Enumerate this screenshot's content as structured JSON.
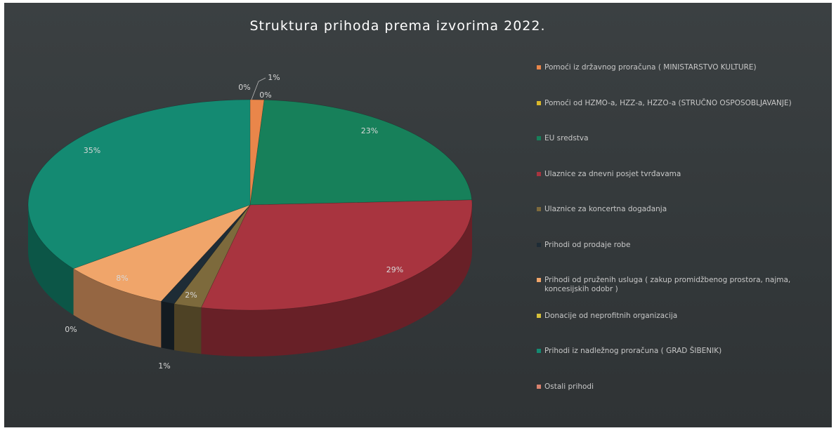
{
  "chart_data": {
    "type": "pie",
    "title": "Struktura prihoda prema izvorima 2022.",
    "categories": [
      "Pomoći iz državnog proračuna ( MINISTARSTVO KULTURE)",
      "Pomoći od HZMO-a, HZZ-a, HZZO-a (STRUČNO OSPOSOBLJAVANJE)",
      "EU sredstva",
      "Ulaznice za dnevni posjet tvrđavama",
      "Ulaznice za koncertna događanja",
      "Prihodi od prodaje robe",
      "Prihodi od pruženih usluga ( zakup promidžbenog prostora, najma, koncesijskih odobr )",
      "Donacije od neprofitnih organizacija",
      "Prihodi iz nadležnog proračuna ( GRAD ŠIBENIK)",
      "Ostali prihodi"
    ],
    "values": [
      1,
      0,
      23,
      29,
      2,
      1,
      8,
      0,
      35,
      0
    ],
    "value_labels": [
      "1%",
      "0%",
      "23%",
      "29%",
      "2%",
      "1%",
      "8%",
      "0%",
      "35%",
      "0%"
    ],
    "colors": [
      "#e9864a",
      "#d9b82a",
      "#17805a",
      "#a8343f",
      "#7d6a3c",
      "#1e2c36",
      "#f0a56a",
      "#d6c03a",
      "#148a72",
      "#d9826e"
    ]
  }
}
